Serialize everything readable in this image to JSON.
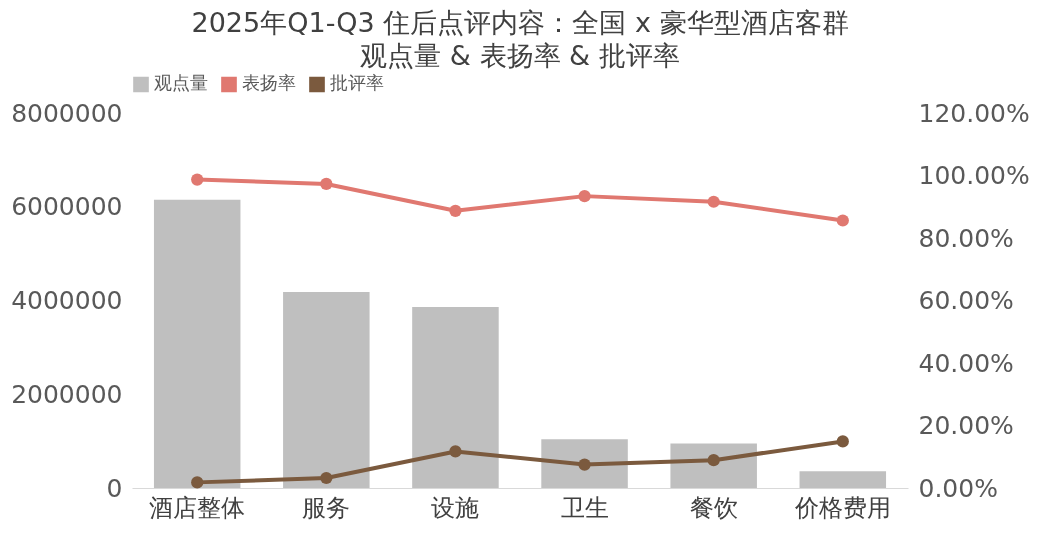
{
  "chart_data": {
    "type": "bar",
    "title": "2025年Q1-Q3 住后点评内容：全国 x 豪华型酒店客群",
    "subtitle": "观点量 & 表扬率 & 批评率",
    "categories": [
      "酒店整体",
      "服务",
      "设施",
      "卫生",
      "餐饮",
      "价格费用"
    ],
    "series": [
      {
        "name": "观点量",
        "color": "#bfbfbf",
        "values": [
          6150000,
          4180000,
          3860000,
          1040000,
          950000,
          360000
        ]
      },
      {
        "name": "表扬率",
        "type": "line",
        "axis": "y2",
        "color": "#e07870",
        "values": [
          98.7,
          97.3,
          88.7,
          93.4,
          91.6,
          85.6
        ]
      },
      {
        "name": "批评率",
        "type": "line",
        "axis": "y2",
        "color": "#7b5a3e",
        "values": [
          1.8,
          3.2,
          11.7,
          7.5,
          8.9,
          14.9
        ]
      }
    ],
    "ylim": [
      0,
      8000000
    ],
    "yticks": [
      0,
      2000000,
      4000000,
      6000000,
      8000000
    ],
    "y2lim": [
      0,
      120
    ],
    "y2ticks": [
      {
        "value": 0,
        "label": "0.00%"
      },
      {
        "value": 20,
        "label": "20.00%"
      },
      {
        "value": 40,
        "label": "40.00%"
      },
      {
        "value": 60,
        "label": "60.00%"
      },
      {
        "value": 80,
        "label": "80.00%"
      },
      {
        "value": 100,
        "label": "100.00%"
      },
      {
        "value": 120,
        "label": "120.00%"
      }
    ],
    "legend": "top",
    "marker": "circle",
    "line_style": "solid"
  }
}
